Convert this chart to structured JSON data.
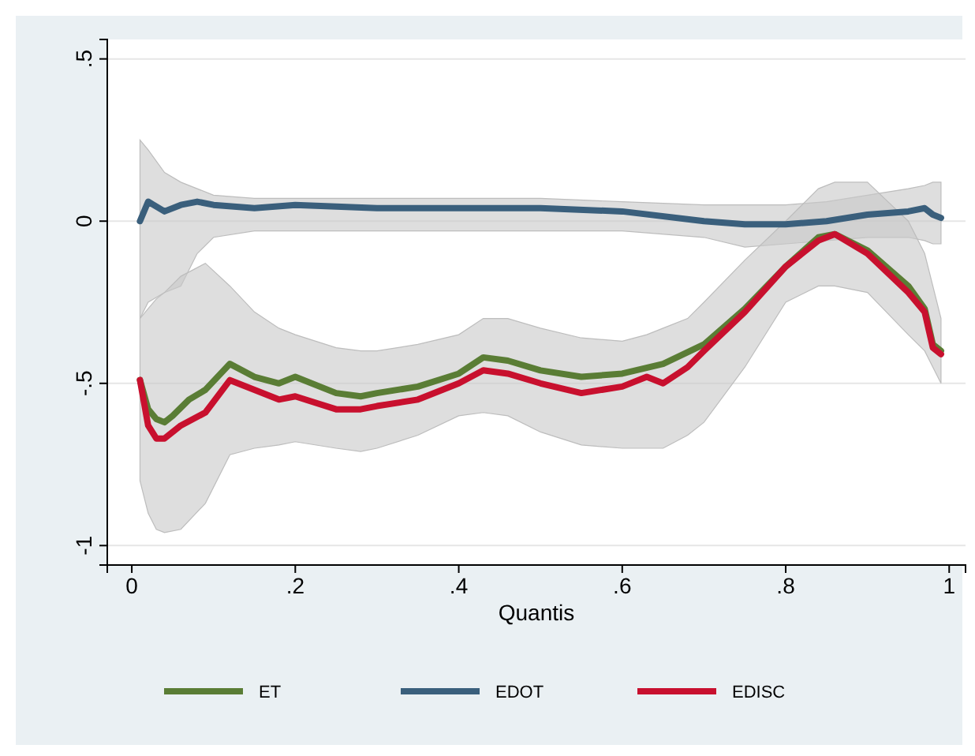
{
  "chart_data": {
    "type": "line",
    "xlabel": "Quantis",
    "xlim": [
      -0.03,
      1.02
    ],
    "ylim": [
      -1.06,
      0.56
    ],
    "xticks": [
      {
        "value": 0,
        "label": "0"
      },
      {
        "value": 0.2,
        "label": ".2"
      },
      {
        "value": 0.4,
        "label": ".4"
      },
      {
        "value": 0.6,
        "label": ".6"
      },
      {
        "value": 0.8,
        "label": ".8"
      },
      {
        "value": 1,
        "label": "1"
      }
    ],
    "yticks": [
      {
        "value": -1,
        "label": "-1"
      },
      {
        "value": -0.5,
        "label": "-.5"
      },
      {
        "value": 0,
        "label": "0"
      },
      {
        "value": 0.5,
        "label": ".5"
      }
    ],
    "grid": "y",
    "legend": "bottom",
    "line_style": "solid",
    "marker": "none",
    "series": [
      {
        "name": "EDOT",
        "color": "#3a5f7c",
        "x": [
          0.01,
          0.02,
          0.04,
          0.06,
          0.08,
          0.1,
          0.15,
          0.2,
          0.3,
          0.4,
          0.5,
          0.6,
          0.7,
          0.75,
          0.8,
          0.85,
          0.9,
          0.95,
          0.97,
          0.98,
          0.99
        ],
        "values": [
          0.0,
          0.06,
          0.03,
          0.05,
          0.06,
          0.05,
          0.04,
          0.05,
          0.04,
          0.04,
          0.04,
          0.03,
          0.0,
          -0.01,
          -0.01,
          0.0,
          0.02,
          0.03,
          0.04,
          0.02,
          0.01
        ],
        "upper": [
          0.25,
          0.22,
          0.15,
          0.12,
          0.1,
          0.08,
          0.07,
          0.07,
          0.07,
          0.07,
          0.07,
          0.06,
          0.05,
          0.05,
          0.05,
          0.06,
          0.08,
          0.1,
          0.11,
          0.12,
          0.12
        ],
        "lower": [
          -0.3,
          -0.25,
          -0.22,
          -0.2,
          -0.1,
          -0.05,
          -0.03,
          -0.03,
          -0.03,
          -0.03,
          -0.03,
          -0.03,
          -0.05,
          -0.08,
          -0.07,
          -0.06,
          -0.05,
          -0.05,
          -0.06,
          -0.07,
          -0.07
        ]
      },
      {
        "name": "ET",
        "color": "#5a7d35",
        "x": [
          0.01,
          0.02,
          0.03,
          0.04,
          0.05,
          0.07,
          0.09,
          0.12,
          0.15,
          0.18,
          0.2,
          0.25,
          0.28,
          0.3,
          0.35,
          0.4,
          0.43,
          0.46,
          0.5,
          0.55,
          0.6,
          0.65,
          0.7,
          0.75,
          0.8,
          0.84,
          0.86,
          0.9,
          0.95,
          0.97,
          0.98,
          0.99
        ],
        "values": [
          -0.49,
          -0.58,
          -0.61,
          -0.62,
          -0.6,
          -0.55,
          -0.52,
          -0.44,
          -0.48,
          -0.5,
          -0.48,
          -0.53,
          -0.54,
          -0.53,
          -0.51,
          -0.47,
          -0.42,
          -0.43,
          -0.46,
          -0.48,
          -0.47,
          -0.44,
          -0.38,
          -0.27,
          -0.14,
          -0.05,
          -0.04,
          -0.09,
          -0.2,
          -0.27,
          -0.38,
          -0.4
        ]
      },
      {
        "name": "EDISC",
        "color": "#c8102e",
        "x": [
          0.01,
          0.02,
          0.03,
          0.04,
          0.06,
          0.09,
          0.12,
          0.15,
          0.18,
          0.2,
          0.25,
          0.28,
          0.3,
          0.35,
          0.4,
          0.43,
          0.46,
          0.5,
          0.55,
          0.6,
          0.63,
          0.65,
          0.68,
          0.7,
          0.75,
          0.8,
          0.84,
          0.86,
          0.9,
          0.95,
          0.97,
          0.98,
          0.99
        ],
        "values": [
          -0.49,
          -0.63,
          -0.67,
          -0.67,
          -0.63,
          -0.59,
          -0.49,
          -0.52,
          -0.55,
          -0.54,
          -0.58,
          -0.58,
          -0.57,
          -0.55,
          -0.5,
          -0.46,
          -0.47,
          -0.5,
          -0.53,
          -0.51,
          -0.48,
          -0.5,
          -0.45,
          -0.4,
          -0.28,
          -0.14,
          -0.06,
          -0.04,
          -0.1,
          -0.22,
          -0.28,
          -0.39,
          -0.41
        ],
        "upper": [
          -0.3,
          -0.27,
          -0.24,
          -0.22,
          -0.17,
          -0.13,
          -0.2,
          -0.28,
          -0.33,
          -0.35,
          -0.39,
          -0.4,
          -0.4,
          -0.38,
          -0.35,
          -0.3,
          -0.3,
          -0.33,
          -0.36,
          -0.37,
          -0.35,
          -0.33,
          -0.3,
          -0.25,
          -0.12,
          0.0,
          0.1,
          0.12,
          0.12,
          0.0,
          -0.1,
          -0.2,
          -0.3
        ],
        "lower": [
          -0.8,
          -0.9,
          -0.95,
          -0.96,
          -0.95,
          -0.87,
          -0.72,
          -0.7,
          -0.69,
          -0.68,
          -0.7,
          -0.71,
          -0.7,
          -0.66,
          -0.6,
          -0.59,
          -0.6,
          -0.65,
          -0.69,
          -0.7,
          -0.7,
          -0.7,
          -0.66,
          -0.62,
          -0.45,
          -0.25,
          -0.2,
          -0.2,
          -0.22,
          -0.35,
          -0.4,
          -0.45,
          -0.5
        ]
      }
    ]
  }
}
